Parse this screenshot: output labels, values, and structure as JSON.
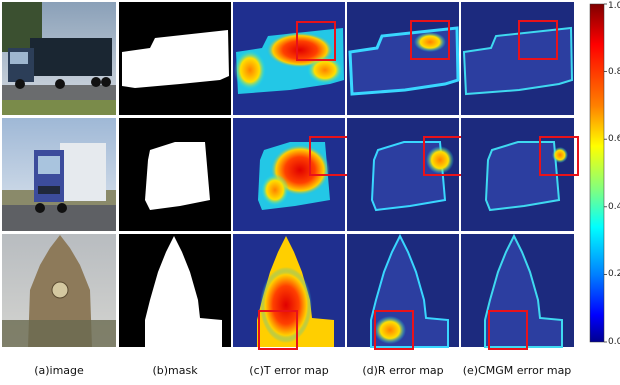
{
  "columns": [
    {
      "id": "image",
      "caption": "(a)image"
    },
    {
      "id": "mask",
      "caption": "(b)mask"
    },
    {
      "id": "t_error",
      "caption": "(c)T error map"
    },
    {
      "id": "r_error",
      "caption": "(d)R error map"
    },
    {
      "id": "cmgm_error",
      "caption": "(e)CMGM error map"
    }
  ],
  "rows": [
    {
      "subject": "truck side view"
    },
    {
      "subject": "truck front view"
    },
    {
      "subject": "clock tower"
    }
  ],
  "colorbar": {
    "ticks": [
      "1.0",
      "0.8",
      "0.6",
      "0.4",
      "0.2",
      "0.0"
    ],
    "colors": [
      "#800000",
      "#ff0000",
      "#ff8000",
      "#ffff00",
      "#80ff80",
      "#00ffff",
      "#0080ff",
      "#0000ff",
      "#00008f"
    ]
  },
  "highlight_color": "#e8121a"
}
